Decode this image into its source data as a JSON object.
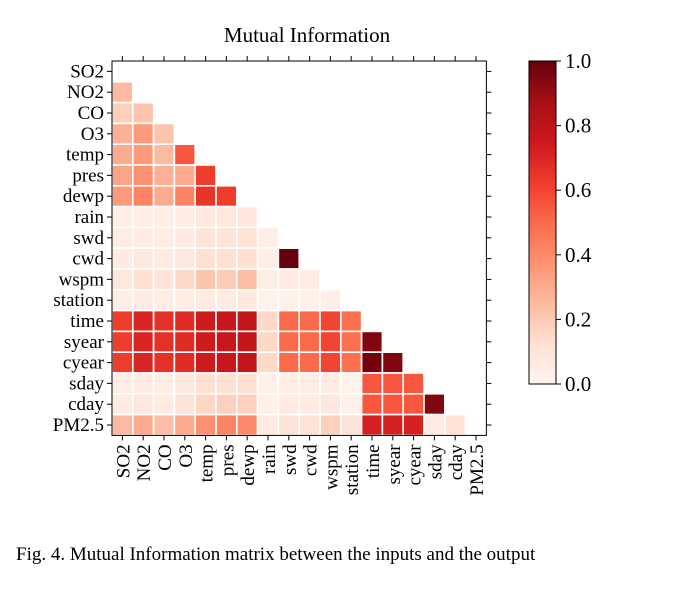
{
  "chart_data": {
    "type": "heatmap",
    "title": "Mutual Information",
    "labels": [
      "SO2",
      "NO2",
      "CO",
      "O3",
      "temp",
      "pres",
      "dewp",
      "rain",
      "swd",
      "cwd",
      "wspm",
      "station",
      "time",
      "syear",
      "cyear",
      "sday",
      "cday",
      "PM2.5"
    ],
    "lower_triangle_values": [
      [],
      [
        0.25
      ],
      [
        0.18,
        0.22
      ],
      [
        0.28,
        0.35,
        0.22
      ],
      [
        0.3,
        0.35,
        0.25,
        0.55
      ],
      [
        0.32,
        0.38,
        0.28,
        0.3,
        0.62
      ],
      [
        0.35,
        0.42,
        0.3,
        0.42,
        0.65,
        0.62
      ],
      [
        0.04,
        0.05,
        0.04,
        0.05,
        0.08,
        0.08,
        0.08
      ],
      [
        0.05,
        0.06,
        0.05,
        0.06,
        0.1,
        0.1,
        0.11,
        0.04
      ],
      [
        0.06,
        0.07,
        0.06,
        0.08,
        0.12,
        0.12,
        0.13,
        0.04,
        1.0
      ],
      [
        0.08,
        0.12,
        0.1,
        0.15,
        0.22,
        0.2,
        0.24,
        0.04,
        0.06,
        0.05
      ],
      [
        0.05,
        0.06,
        0.05,
        0.05,
        0.06,
        0.06,
        0.07,
        0.02,
        0.03,
        0.03,
        0.04
      ],
      [
        0.62,
        0.7,
        0.66,
        0.68,
        0.74,
        0.76,
        0.78,
        0.15,
        0.5,
        0.5,
        0.6,
        0.48
      ],
      [
        0.62,
        0.7,
        0.66,
        0.68,
        0.74,
        0.76,
        0.78,
        0.15,
        0.5,
        0.5,
        0.6,
        0.48,
        0.95
      ],
      [
        0.62,
        0.7,
        0.66,
        0.68,
        0.74,
        0.76,
        0.78,
        0.15,
        0.5,
        0.5,
        0.6,
        0.48,
        0.98,
        0.95
      ],
      [
        0.05,
        0.06,
        0.05,
        0.08,
        0.12,
        0.12,
        0.13,
        0.03,
        0.05,
        0.05,
        0.06,
        0.02,
        0.55,
        0.55,
        0.55
      ],
      [
        0.06,
        0.08,
        0.06,
        0.1,
        0.16,
        0.18,
        0.18,
        0.03,
        0.06,
        0.06,
        0.08,
        0.03,
        0.55,
        0.55,
        0.55,
        0.95
      ],
      [
        0.25,
        0.3,
        0.24,
        0.3,
        0.38,
        0.42,
        0.4,
        0.06,
        0.1,
        0.1,
        0.18,
        0.1,
        0.72,
        0.72,
        0.72,
        0.06,
        0.1
      ]
    ],
    "colorbar": {
      "min": 0.0,
      "max": 1.0,
      "colormap": "Reds",
      "ticks": [
        0.0,
        0.2,
        0.4,
        0.6,
        0.8,
        1.0
      ],
      "tick_labels": [
        "0.0",
        "0.2",
        "0.4",
        "0.6",
        "0.8",
        "1.0"
      ]
    }
  },
  "caption": {
    "text": "Fig. 4.  Mutual Information matrix between the inputs and the output"
  }
}
